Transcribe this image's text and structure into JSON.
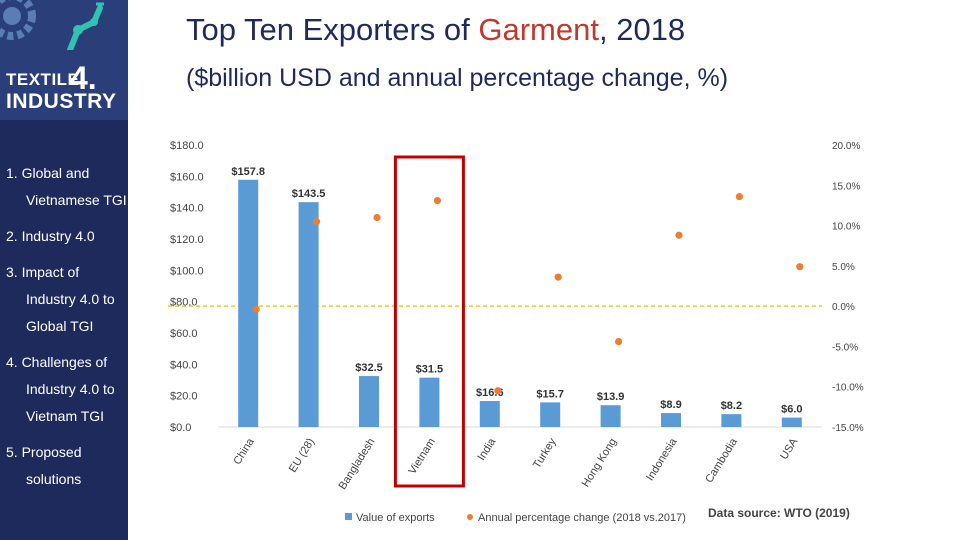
{
  "logo": {
    "line1": "TEXTILE",
    "number": "4.",
    "line2": "INDUSTRY"
  },
  "nav": {
    "items": [
      {
        "lines": [
          "1. Global and",
          "Vietnamese TGI"
        ]
      },
      {
        "lines": [
          "2. Industry 4.0"
        ]
      },
      {
        "lines": [
          "3. Impact of",
          "Industry 4.0 to",
          "Global TGI"
        ]
      },
      {
        "lines": [
          "4. Challenges of",
          "Industry 4.0 to",
          "Vietnam TGI"
        ]
      },
      {
        "lines": [
          "5. Proposed",
          "solutions"
        ]
      }
    ]
  },
  "header": {
    "title_pre": "Top Ten Exporters of ",
    "title_accent": "Garment",
    "title_post": ", 2018",
    "subtitle": "($billion USD and annual percentage change, %)"
  },
  "source": "Data source: WTO (2019)",
  "colors": {
    "bar": "#5b9bd5",
    "dot": "#ed7d31",
    "highlight": "#c00000",
    "zero_line": "#e6c200",
    "accent": "#c0392b"
  },
  "chart_data": {
    "type": "bar",
    "categories": [
      "China",
      "EU (28)",
      "Bangladesh",
      "Vietnam",
      "India",
      "Turkey",
      "Hong Kong",
      "Indonesia",
      "Cambodia",
      "USA"
    ],
    "series": [
      {
        "name": "Value of exports",
        "type": "bar",
        "axis": "left",
        "values": [
          157.8,
          143.5,
          32.5,
          31.5,
          16.6,
          15.7,
          13.9,
          8.9,
          8.2,
          6.0
        ],
        "labels": [
          "$157.8",
          "$143.5",
          "$32.5",
          "$31.5",
          "$16.6",
          "$15.7",
          "$13.9",
          "$8.9",
          "$8.2",
          "$6.0"
        ]
      },
      {
        "name": "Annual percentage change (2018 vs.2017)",
        "type": "scatter",
        "axis": "right",
        "values": [
          -0.4,
          10.5,
          11.0,
          13.1,
          -10.5,
          3.6,
          -4.4,
          8.8,
          13.6,
          4.9
        ]
      }
    ],
    "ylim_left": [
      0,
      180
    ],
    "ylim_right": [
      -15,
      20
    ],
    "yticks_left": [
      "$180.0",
      "$160.0",
      "$140.0",
      "$120.0",
      "$100.0",
      "$80.0",
      "$60.0",
      "$40.0",
      "$20.0",
      "$0.0"
    ],
    "yticks_right": [
      "20.0%",
      "15.0%",
      "10.0%",
      "5.0%",
      "0.0%",
      "-5.0%",
      "-10.0%",
      "-15.0%"
    ],
    "highlight_category": "Vietnam",
    "legend": [
      "Value of exports",
      "Annual percentage change (2018 vs.2017)"
    ]
  }
}
